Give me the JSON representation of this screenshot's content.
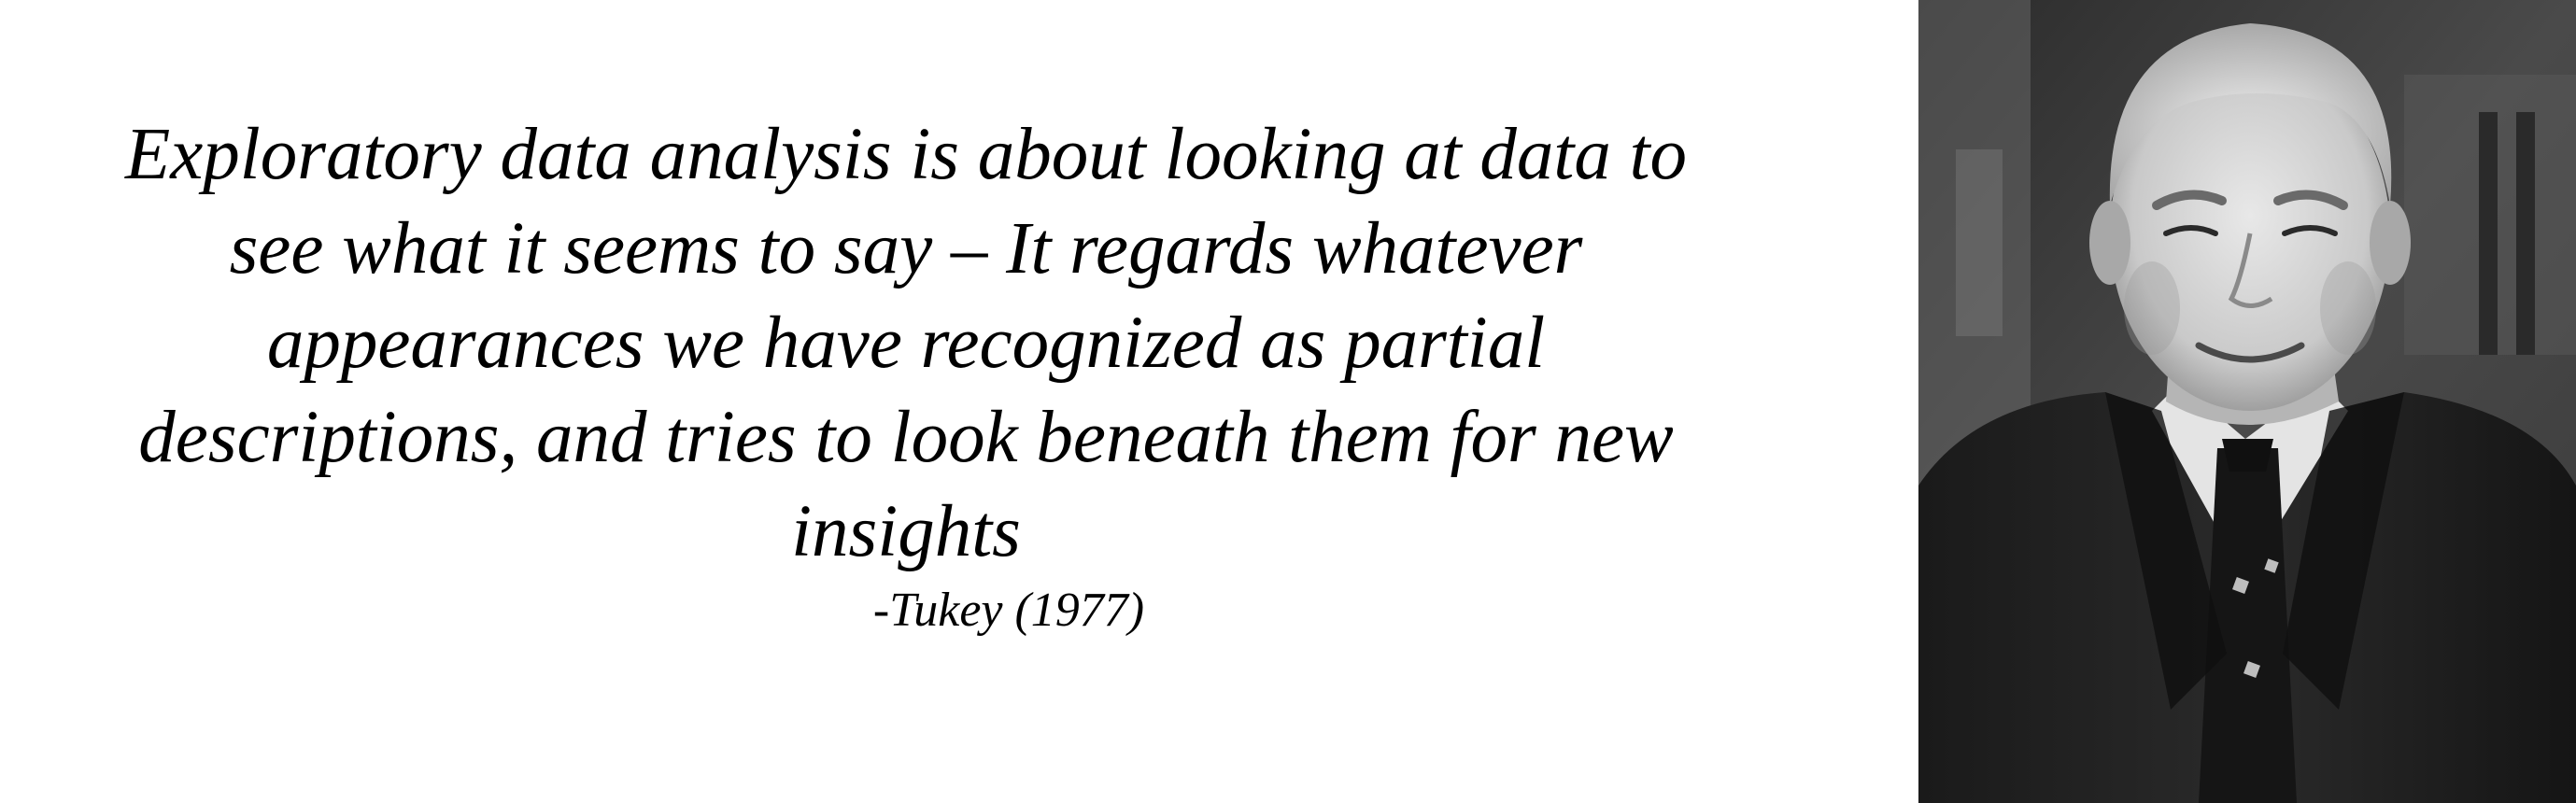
{
  "quote": {
    "lines": [
      "Exploratory data analysis is about looking at data to",
      "see what it seems to say – It regards whatever",
      "appearances we have recognized as partial",
      "descriptions, and tries to look beneath them for new",
      "insights"
    ],
    "attribution": "-Tukey (1977)"
  },
  "portrait": {
    "description_icon": "portrait-photo",
    "tone": "grayscale"
  }
}
